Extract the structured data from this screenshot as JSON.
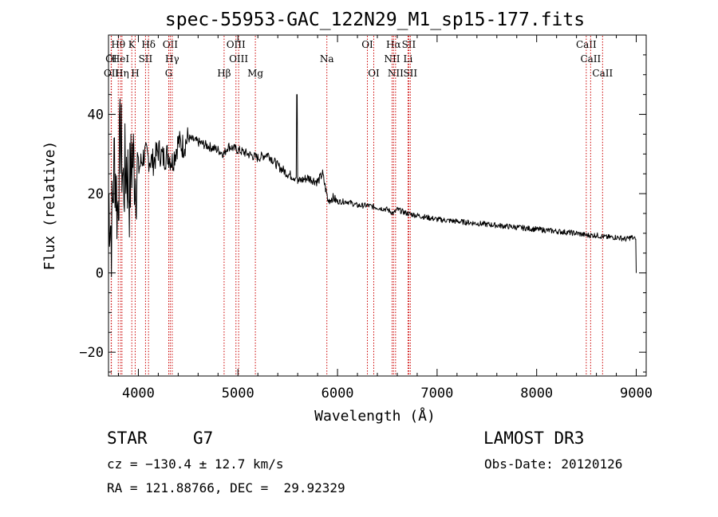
{
  "chart_data": {
    "type": "line",
    "title": "spec-55953-GAC_122N29_M1_sp15-177.fits",
    "xlabel": "Wavelength (Å)",
    "ylabel": "Flux (relative)",
    "xlim": [
      3700,
      9100
    ],
    "ylim": [
      -26,
      60
    ],
    "xticks": [
      4000,
      5000,
      6000,
      7000,
      8000,
      9000
    ],
    "yticks": [
      -20,
      0,
      20,
      40
    ],
    "series": [
      {
        "name": "flux",
        "x": [
          3700,
          3730,
          3760,
          3790,
          3820,
          3850,
          3880,
          3910,
          3940,
          3970,
          4000,
          4030,
          4060,
          4100,
          4150,
          4200,
          4250,
          4300,
          4340,
          4400,
          4450,
          4500,
          4600,
          4700,
          4800,
          4861,
          4900,
          5000,
          5100,
          5200,
          5300,
          5400,
          5500,
          5580,
          5590,
          5600,
          5700,
          5800,
          5850,
          5890,
          5900,
          5950,
          6000,
          6100,
          6200,
          6300,
          6400,
          6500,
          6563,
          6600,
          6700,
          6800,
          6900,
          7000,
          7200,
          7400,
          7600,
          7800,
          8000,
          8200,
          8400,
          8500,
          8600,
          8700,
          8800,
          8900,
          8950,
          8990,
          9000
        ],
        "y": [
          20,
          10,
          30,
          15,
          35,
          22,
          28,
          20,
          30,
          25,
          26,
          28,
          30,
          29,
          28,
          31,
          29,
          30,
          28,
          33,
          32,
          34,
          33,
          32,
          31,
          30,
          32,
          31,
          30,
          29,
          30,
          27,
          25,
          24,
          45,
          23,
          24,
          23,
          25,
          20,
          18,
          19,
          18,
          18,
          17,
          17,
          16.5,
          16,
          15,
          16,
          15,
          14.5,
          14,
          13.5,
          13,
          12.5,
          12,
          11.5,
          11,
          10.5,
          10,
          9.5,
          9.5,
          9,
          9,
          8.5,
          9,
          8.5,
          0
        ]
      }
    ],
    "line_markers": [
      {
        "label": "Hθ",
        "x": 3798,
        "row": 1
      },
      {
        "label": "K",
        "x": 3934,
        "row": 1
      },
      {
        "label": "Hδ",
        "x": 4102,
        "row": 1
      },
      {
        "label": "OII",
        "x": 4320,
        "row": 1
      },
      {
        "label": "OIII",
        "x": 4980,
        "row": 1
      },
      {
        "label": "OI",
        "x": 6300,
        "row": 1
      },
      {
        "label": "Hα",
        "x": 6563,
        "row": 1
      },
      {
        "label": "SII",
        "x": 6716,
        "row": 1
      },
      {
        "label": "CaII",
        "x": 8498,
        "row": 1
      },
      {
        "label": "OI",
        "x": 3727,
        "row": 2
      },
      {
        "label": "HeI",
        "x": 3820,
        "row": 2
      },
      {
        "label": "SII",
        "x": 4072,
        "row": 2
      },
      {
        "label": "Hγ",
        "x": 4340,
        "row": 2
      },
      {
        "label": "OIII",
        "x": 5007,
        "row": 2
      },
      {
        "label": "Na",
        "x": 5893,
        "row": 2
      },
      {
        "label": "NII",
        "x": 6548,
        "row": 2
      },
      {
        "label": "Li",
        "x": 6708,
        "row": 2
      },
      {
        "label": "CaII",
        "x": 8542,
        "row": 2
      },
      {
        "label": "OII",
        "x": 3729,
        "row": 3
      },
      {
        "label": "Hη",
        "x": 3835,
        "row": 3
      },
      {
        "label": "H",
        "x": 3968,
        "row": 3
      },
      {
        "label": "G",
        "x": 4305,
        "row": 3
      },
      {
        "label": "Hβ",
        "x": 4861,
        "row": 3
      },
      {
        "label": "Mg",
        "x": 5175,
        "row": 3
      },
      {
        "label": "OI",
        "x": 6364,
        "row": 3
      },
      {
        "label": "NII",
        "x": 6583,
        "row": 3
      },
      {
        "label": "SII",
        "x": 6731,
        "row": 3
      },
      {
        "label": "CaII",
        "x": 8662,
        "row": 3
      }
    ],
    "colors": {
      "spectrum": "#000000",
      "line_marker": "#cc0000",
      "axes": "#000000"
    }
  },
  "info": {
    "class": "STAR",
    "subclass": "G7",
    "survey": "LAMOST DR3",
    "cz": "cz = −130.4 ± 12.7 km/s",
    "obs_date": "Obs-Date: 20120126",
    "coords": "RA = 121.88766, DEC =  29.92329"
  }
}
